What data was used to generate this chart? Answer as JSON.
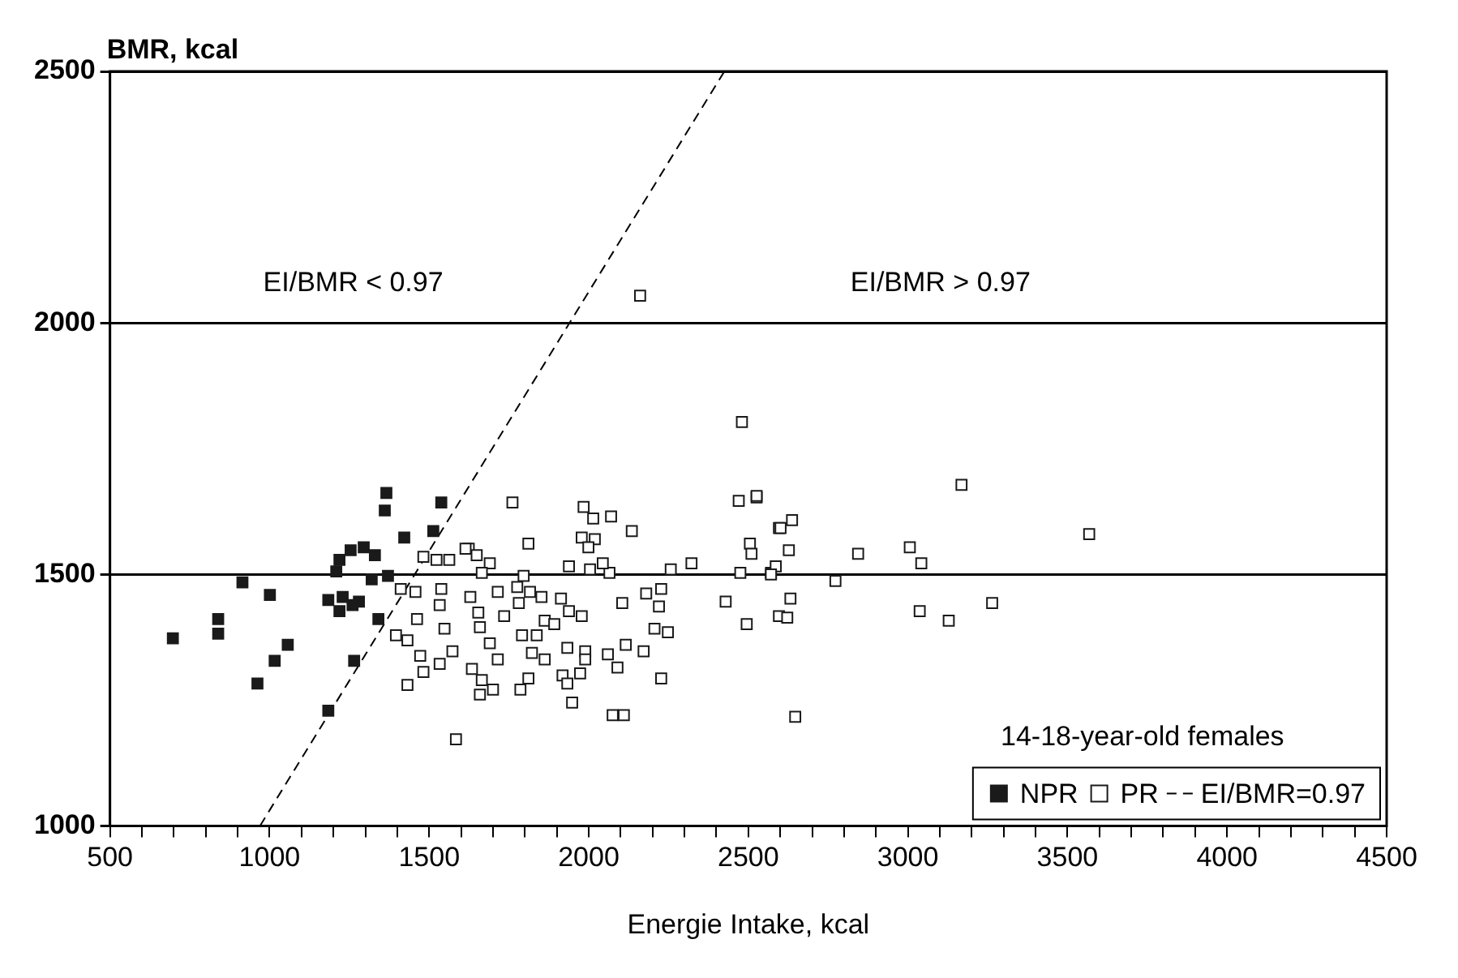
{
  "chart_data": {
    "type": "scatter",
    "xlabel": "Energie Intake, kcal",
    "ylabel": "BMR, kcal",
    "xlim": [
      500,
      4500
    ],
    "ylim": [
      1000,
      2500
    ],
    "xticks": [
      500,
      {
        "value": 600,
        "label": null
      },
      {
        "value": 700,
        "label": null
      },
      {
        "value": 800,
        "label": null
      },
      {
        "value": 900,
        "label": null
      },
      1000,
      {
        "value": 1100,
        "label": null
      },
      {
        "value": 1200,
        "label": null
      },
      {
        "value": 1300,
        "label": null
      },
      {
        "value": 1400,
        "label": null
      },
      1500,
      {
        "value": 1600,
        "label": null
      },
      {
        "value": 1700,
        "label": null
      },
      {
        "value": 1800,
        "label": null
      },
      {
        "value": 1900,
        "label": null
      },
      2000,
      {
        "value": 2100,
        "label": null
      },
      {
        "value": 2200,
        "label": null
      },
      {
        "value": 2300,
        "label": null
      },
      {
        "value": 2400,
        "label": null
      },
      2500,
      {
        "value": 2600,
        "label": null
      },
      {
        "value": 2700,
        "label": null
      },
      {
        "value": 2800,
        "label": null
      },
      {
        "value": 2900,
        "label": null
      },
      3000,
      {
        "value": 3100,
        "label": null
      },
      {
        "value": 3200,
        "label": null
      },
      {
        "value": 3300,
        "label": null
      },
      {
        "value": 3400,
        "label": null
      },
      3500,
      {
        "value": 3600,
        "label": null
      },
      {
        "value": 3700,
        "label": null
      },
      {
        "value": 3800,
        "label": null
      },
      {
        "value": 3900,
        "label": null
      },
      4000,
      {
        "value": 4100,
        "label": null
      },
      {
        "value": 4200,
        "label": null
      },
      {
        "value": 4300,
        "label": null
      },
      {
        "value": 4400,
        "label": null
      },
      4500
    ],
    "yticks": [
      1000,
      1500,
      2000,
      2500
    ],
    "grid": "y",
    "legend": "bottom right",
    "marker": "square",
    "annotations": [
      "EI/BMR < 0.97",
      "EI/BMR > 0.97",
      "14-18-year-old females"
    ],
    "series": [
      {
        "name": "NPR",
        "color": "#1a1a1a",
        "x": [
          1366,
          1361,
          1538,
          1422,
          1513,
          1219,
          1254,
          1295,
          1330,
          1209,
          1320,
          1371,
          915,
          1001,
          839,
          839,
          697,
          1057,
          1016,
          962,
          1265,
          1184,
          1184,
          1229,
          1280,
          1219,
          1260,
          1341
        ],
        "values": [
          1662,
          1627,
          1643,
          1573,
          1586,
          1529,
          1548,
          1554,
          1538,
          1506,
          1490,
          1497,
          1484,
          1459,
          1411,
          1382,
          1373,
          1360,
          1328,
          1283,
          1328,
          1229,
          1449,
          1455,
          1446,
          1427,
          1439,
          1411
        ]
      },
      {
        "name": "PR",
        "color": "#ffffff",
        "x": [
          2480,
          1761,
          1984,
          2014,
          2070,
          2135,
          1811,
          1978,
          2019,
          1999,
          1624,
          1649,
          1690,
          1665,
          1938,
          2004,
          2065,
          2044,
          1796,
          2257,
          2322,
          2470,
          2526,
          2505,
          2510,
          2475,
          2571,
          2596,
          1629,
          1715,
          1776,
          1816,
          1852,
          1913,
          1654,
          1659,
          1735,
          1781,
          1862,
          1892,
          1938,
          1978,
          2105,
          2180,
          2227,
          2220,
          2429,
          2495,
          1690,
          1791,
          1837,
          1715,
          1822,
          1862,
          1933,
          1989,
          1989,
          2060,
          2116,
          2172,
          2206,
          2248,
          1634,
          1665,
          1700,
          1659,
          1786,
          1811,
          1918,
          1973,
          1933,
          2090,
          2227,
          1948,
          2075,
          2110,
          2596,
          2526,
          3168,
          2601,
          2637,
          2627,
          2844,
          3006,
          3042,
          2586,
          2571,
          2773,
          2632,
          2622,
          3037,
          3128,
          3264,
          2647,
          3568,
          2161,
          1482,
          1523,
          1563,
          1614,
          1411,
          1457,
          1538,
          1533,
          1462,
          1548,
          1396,
          1432,
          1472,
          1533,
          1573,
          1432,
          1482,
          1584
        ],
        "values": [
          1803,
          1643,
          1634,
          1611,
          1615,
          1586,
          1561,
          1573,
          1570,
          1554,
          1551,
          1538,
          1522,
          1503,
          1516,
          1510,
          1503,
          1522,
          1497,
          1510,
          1522,
          1646,
          1653,
          1561,
          1541,
          1503,
          1503,
          1592,
          1455,
          1465,
          1475,
          1465,
          1455,
          1452,
          1424,
          1395,
          1417,
          1443,
          1408,
          1401,
          1427,
          1417,
          1443,
          1462,
          1471,
          1436,
          1446,
          1401,
          1363,
          1379,
          1379,
          1331,
          1344,
          1331,
          1354,
          1347,
          1331,
          1341,
          1360,
          1347,
          1392,
          1385,
          1312,
          1290,
          1271,
          1261,
          1271,
          1293,
          1299,
          1303,
          1283,
          1315,
          1293,
          1245,
          1220,
          1220,
          1417,
          1656,
          1678,
          1592,
          1608,
          1548,
          1541,
          1554,
          1522,
          1516,
          1500,
          1487,
          1452,
          1414,
          1427,
          1408,
          1443,
          1217,
          1580,
          2054,
          1535,
          1529,
          1529,
          1551,
          1471,
          1465,
          1471,
          1439,
          1411,
          1392,
          1379,
          1369,
          1338,
          1322,
          1347,
          1280,
          1306,
          1172
        ]
      },
      {
        "name": "EI/BMR=0.97",
        "type": "line",
        "color": "#000000",
        "line_style": "dashed",
        "marker": "none",
        "x": [
          970,
          2425
        ],
        "values": [
          1000,
          2500
        ]
      }
    ]
  }
}
